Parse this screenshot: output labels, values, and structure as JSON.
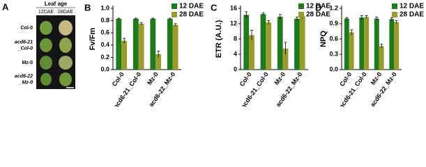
{
  "image_panel": {
    "panel_label": "A",
    "title": "Leaf age",
    "columns": [
      "12DAE",
      "28DAE"
    ],
    "rows": [
      [
        "Col-0"
      ],
      [
        "acd6-21",
        "_Col-0"
      ],
      [
        "Mz-0"
      ],
      [
        "acd6-22",
        "_Mz-0"
      ]
    ]
  },
  "chart_data": [
    {
      "type": "bar",
      "panel_label": "B",
      "y_label": "Fv/Fm",
      "categories": [
        "Col-0",
        "acd6-21_Col-0",
        "Mz-0",
        "acd6-22_Mz-0"
      ],
      "series": [
        {
          "name": "12 DAE",
          "color": "#1d7a1d",
          "values": [
            0.83,
            0.83,
            0.83,
            0.83
          ],
          "errors": [
            0.01,
            0.01,
            0.01,
            0.01
          ]
        },
        {
          "name": "28 DAE",
          "color": "#9b9b2c",
          "values": [
            0.47,
            0.75,
            0.25,
            0.73
          ],
          "errors": [
            0.04,
            0.02,
            0.05,
            0.02
          ]
        }
      ],
      "ylim": [
        0,
        1.0
      ],
      "yticks": [
        {
          "value": 0,
          "label": "0.0"
        },
        0.2,
        0.4,
        0.6,
        0.8,
        {
          "value": 1.0,
          "label": "1.0"
        }
      ],
      "legend": "top-right"
    },
    {
      "type": "bar",
      "panel_label": "C",
      "y_label": "ETR (A.U.)",
      "categories": [
        "Col-0",
        "acd6-21_Col-0",
        "Mz-0",
        "acd6-22_Mz-0"
      ],
      "series": [
        {
          "name": "12 DAE",
          "color": "#1d7a1d",
          "values": [
            14.3,
            14.5,
            13.8,
            13.3
          ],
          "errors": [
            0.8,
            0.3,
            0.6,
            0.4
          ]
        },
        {
          "name": "28 DAE",
          "color": "#9b9b2c",
          "values": [
            9,
            12.3,
            5.5,
            14
          ],
          "errors": [
            1.3,
            0.5,
            1.6,
            0.6
          ]
        }
      ],
      "ylim": [
        0,
        16
      ],
      "yticks": [
        0,
        4,
        8,
        12,
        16
      ],
      "legend": "top-right"
    },
    {
      "type": "bar",
      "panel_label": "D",
      "y_label": "NPQ",
      "categories": [
        "Col-0",
        "acd6-21_Col-0",
        "Mz-0",
        "acd6-22_Mz-0"
      ],
      "series": [
        {
          "name": "12 DAE",
          "color": "#1d7a1d",
          "values": [
            1.0,
            1.02,
            1.0,
            0.99
          ],
          "errors": [
            0.02,
            0.04,
            0.03,
            0.03
          ]
        },
        {
          "name": "28 DAE",
          "color": "#9b9b2c",
          "values": [
            0.73,
            1.03,
            0.46,
            0.93
          ],
          "errors": [
            0.05,
            0.03,
            0.04,
            0.03
          ]
        }
      ],
      "ylim": [
        0,
        1.2
      ],
      "yticks": [
        {
          "value": 0,
          "label": "0.0"
        },
        0.3,
        0.6,
        0.9,
        1.2
      ],
      "legend": "top-right"
    }
  ]
}
